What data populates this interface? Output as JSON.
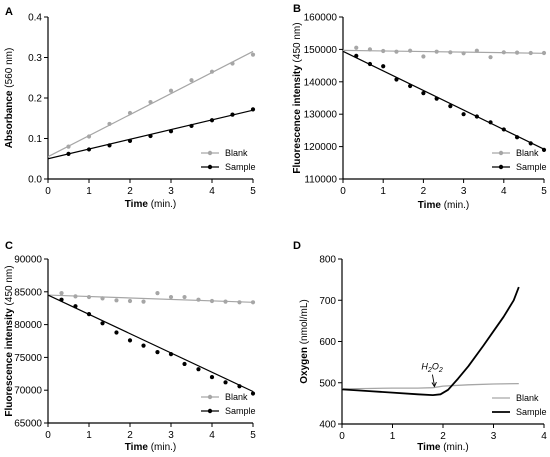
{
  "colors": {
    "blank": "#a6a6a6",
    "sample": "#000000"
  },
  "chart_data": [
    {
      "panel": "A",
      "type": "scatter",
      "xlabel": "Time",
      "xunit": "(min.)",
      "ylabel": "Absorbance",
      "yunit": "(560 nm)",
      "xlim": [
        0,
        5
      ],
      "ylim": [
        0,
        0.4
      ],
      "xticks": [
        0,
        1,
        2,
        3,
        4,
        5
      ],
      "yticks": [
        0.0,
        0.1,
        0.2,
        0.3,
        0.4
      ],
      "ytick_labels": [
        "0.0",
        "0.1",
        "0.2",
        "0.3",
        "0.4"
      ],
      "legend_position": "bottom-right",
      "series": [
        {
          "name": "Blank",
          "color": "#a6a6a6",
          "x": [
            0.5,
            1.0,
            1.5,
            2.0,
            2.5,
            3.0,
            3.5,
            4.0,
            4.5,
            5.0
          ],
          "y": [
            0.08,
            0.105,
            0.136,
            0.163,
            0.19,
            0.218,
            0.244,
            0.265,
            0.285,
            0.307
          ],
          "fit": [
            [
              0,
              0.055
            ],
            [
              5,
              0.315
            ]
          ]
        },
        {
          "name": "Sample",
          "color": "#000000",
          "x": [
            0.5,
            1.0,
            1.5,
            2.0,
            2.5,
            3.0,
            3.5,
            4.0,
            4.5,
            5.0
          ],
          "y": [
            0.062,
            0.073,
            0.083,
            0.094,
            0.106,
            0.118,
            0.131,
            0.145,
            0.159,
            0.172
          ],
          "fit": [
            [
              0,
              0.05
            ],
            [
              5,
              0.17
            ]
          ]
        }
      ]
    },
    {
      "panel": "B",
      "type": "scatter",
      "xlabel": "Time",
      "xunit": "(min.)",
      "ylabel": "Fluorescence intensity",
      "yunit": "(450 nm)",
      "xlim": [
        0,
        5
      ],
      "ylim": [
        110000,
        160000
      ],
      "xticks": [
        0,
        1,
        2,
        3,
        4,
        5
      ],
      "yticks": [
        110000,
        120000,
        130000,
        140000,
        150000,
        160000
      ],
      "ytick_labels": [
        "110000",
        "120000",
        "130000",
        "140000",
        "150000",
        "160000"
      ],
      "legend_position": "bottom-right",
      "series": [
        {
          "name": "Blank",
          "color": "#a6a6a6",
          "x": [
            0.33,
            0.67,
            1.0,
            1.33,
            1.67,
            2.0,
            2.33,
            2.67,
            3.0,
            3.33,
            3.67,
            4.0,
            4.33,
            4.67,
            5.0
          ],
          "y": [
            150500,
            150000,
            149500,
            149300,
            149600,
            147800,
            149300,
            149100,
            148800,
            149600,
            147600,
            149100,
            149000,
            148900,
            148900
          ],
          "fit": [
            [
              0,
              149700
            ],
            [
              5,
              148800
            ]
          ]
        },
        {
          "name": "Sample",
          "color": "#000000",
          "x": [
            0.33,
            0.67,
            1.0,
            1.33,
            1.67,
            2.0,
            2.33,
            2.67,
            3.0,
            3.33,
            3.67,
            4.0,
            4.33,
            4.67,
            5.0
          ],
          "y": [
            148000,
            145500,
            144800,
            140700,
            138700,
            136500,
            134800,
            132500,
            130000,
            129300,
            127500,
            125300,
            122900,
            121000,
            119000
          ],
          "fit": [
            [
              0,
              149400
            ],
            [
              5,
              119200
            ]
          ]
        }
      ]
    },
    {
      "panel": "C",
      "type": "scatter",
      "xlabel": "Time",
      "xunit": "(min.)",
      "ylabel": "Fluorescence intensity",
      "yunit": "(450 nm)",
      "xlim": [
        0,
        5
      ],
      "ylim": [
        65000,
        90000
      ],
      "xticks": [
        0,
        1,
        2,
        3,
        4,
        5
      ],
      "yticks": [
        65000,
        70000,
        75000,
        80000,
        85000,
        90000
      ],
      "ytick_labels": [
        "65000",
        "70000",
        "75000",
        "80000",
        "85000",
        "90000"
      ],
      "legend_position": "bottom-right",
      "series": [
        {
          "name": "Blank",
          "color": "#a6a6a6",
          "x": [
            0.33,
            0.67,
            1.0,
            1.33,
            1.67,
            2.0,
            2.33,
            2.67,
            3.0,
            3.33,
            3.67,
            4.0,
            4.33,
            4.67,
            5.0
          ],
          "y": [
            84800,
            84300,
            84200,
            84000,
            83700,
            83600,
            83500,
            84800,
            84200,
            84200,
            83800,
            83600,
            83500,
            83400,
            83400
          ],
          "fit": [
            [
              0,
              84500
            ],
            [
              5,
              83400
            ]
          ]
        },
        {
          "name": "Sample",
          "color": "#000000",
          "x": [
            0.33,
            0.67,
            1.0,
            1.33,
            1.67,
            2.0,
            2.33,
            2.67,
            3.0,
            3.33,
            3.67,
            4.0,
            4.33,
            4.67,
            5.0
          ],
          "y": [
            83800,
            82800,
            81600,
            80200,
            78800,
            77600,
            76800,
            75800,
            75500,
            74000,
            73200,
            72000,
            71200,
            70600,
            69500
          ],
          "fit": [
            [
              0,
              84500
            ],
            [
              5,
              69800
            ]
          ]
        }
      ]
    },
    {
      "panel": "D",
      "type": "line",
      "xlabel": "Time",
      "xunit": "(min.)",
      "ylabel": "Oxygen",
      "yunit": "(nmol/mL)",
      "xlim": [
        0,
        4
      ],
      "ylim": [
        400,
        800
      ],
      "xticks": [
        0,
        1,
        2,
        3,
        4
      ],
      "yticks": [
        400,
        500,
        600,
        700,
        800
      ],
      "ytick_labels": [
        "400",
        "500",
        "600",
        "700",
        "800"
      ],
      "legend_position": "bottom-right",
      "annotation": {
        "text_main": "H",
        "sub1": "2",
        "mid": "O",
        "sub2": "2",
        "x": 1.83,
        "y": 486
      },
      "series": [
        {
          "name": "Blank",
          "color": "#a6a6a6",
          "x": [
            0,
            0.5,
            1.0,
            1.5,
            1.8,
            2.0,
            2.5,
            3.0,
            3.5
          ],
          "y": [
            485,
            486,
            487,
            487,
            488,
            492,
            495,
            497,
            498
          ]
        },
        {
          "name": "Sample",
          "color": "#000000",
          "x": [
            0,
            0.5,
            1.0,
            1.5,
            1.8,
            1.95,
            2.1,
            2.3,
            2.5,
            2.8,
            3.0,
            3.2,
            3.4,
            3.5
          ],
          "y": [
            484,
            480,
            476,
            472,
            470,
            472,
            483,
            510,
            540,
            590,
            625,
            660,
            700,
            732
          ]
        }
      ]
    }
  ]
}
